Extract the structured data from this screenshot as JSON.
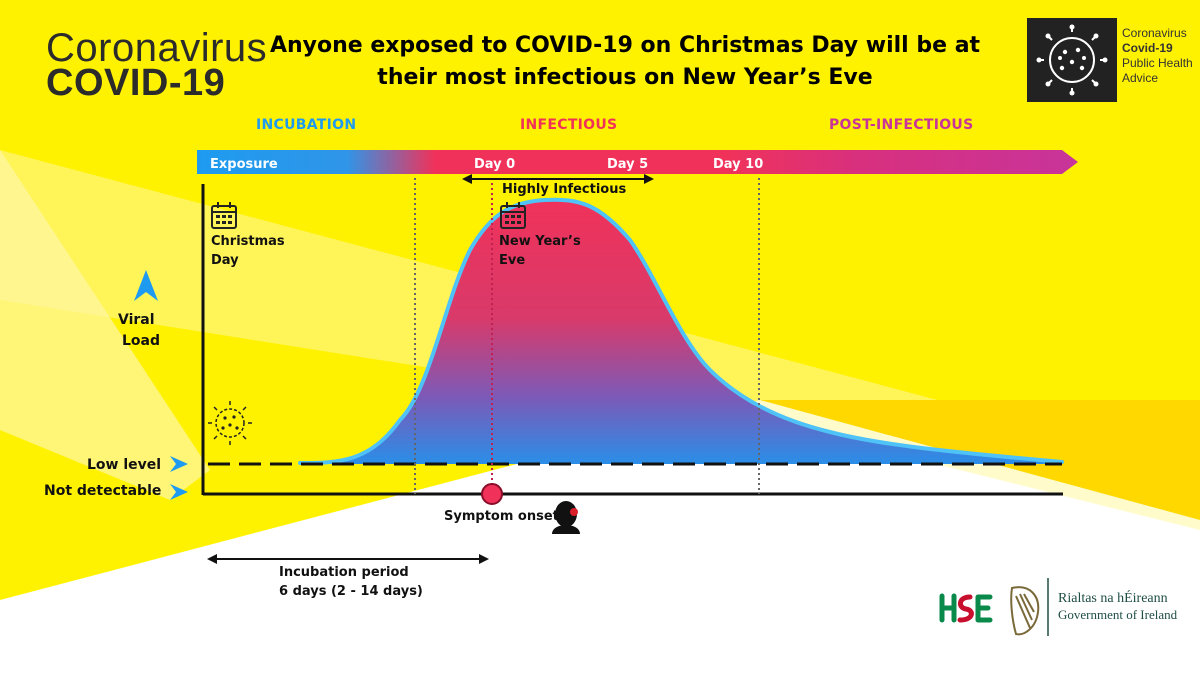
{
  "brand": {
    "line1": "Coronavirus",
    "line2": "COVID-19"
  },
  "headline": "Anyone exposed to COVID-19 on Christmas Day will be at their most infectious on New Year’s Eve",
  "logo": {
    "line1": "Coronavirus",
    "line2": "Covid-19",
    "line3": "Public Health",
    "line4": "Advice",
    "icon": "virus-icon"
  },
  "phases": {
    "incubation": "INCUBATION",
    "infectious": "INFECTIOUS",
    "post_infectious": "POST-INFECTIOUS"
  },
  "timeline": {
    "exposure": "Exposure",
    "day0": "Day 0",
    "day5": "Day 5",
    "day10": "Day 10"
  },
  "annotations": {
    "highly_infectious": "Highly Infectious",
    "christmas_day_1": "Christmas",
    "christmas_day_2": "Day",
    "new_years_eve_1": "New Year’s",
    "new_years_eve_2": "Eve",
    "symptom_onset": "Symptom onset",
    "incubation_period_1": "Incubation period",
    "incubation_period_2": "6 days (2 - 14 days)"
  },
  "axis": {
    "y_label_1": "Viral",
    "y_label_2": "Load",
    "low_level": "Low level",
    "not_detectable": "Not detectable"
  },
  "footer": {
    "hse": "HSE",
    "gov_irish": "Rialtas na hÉireann",
    "gov_english": "Government of Ireland"
  },
  "colors": {
    "yellow": "#fff200",
    "blue": "#1e9bf0",
    "pink": "#f0325a",
    "purple": "#c8349a",
    "outline": "#4fc3f7"
  }
}
